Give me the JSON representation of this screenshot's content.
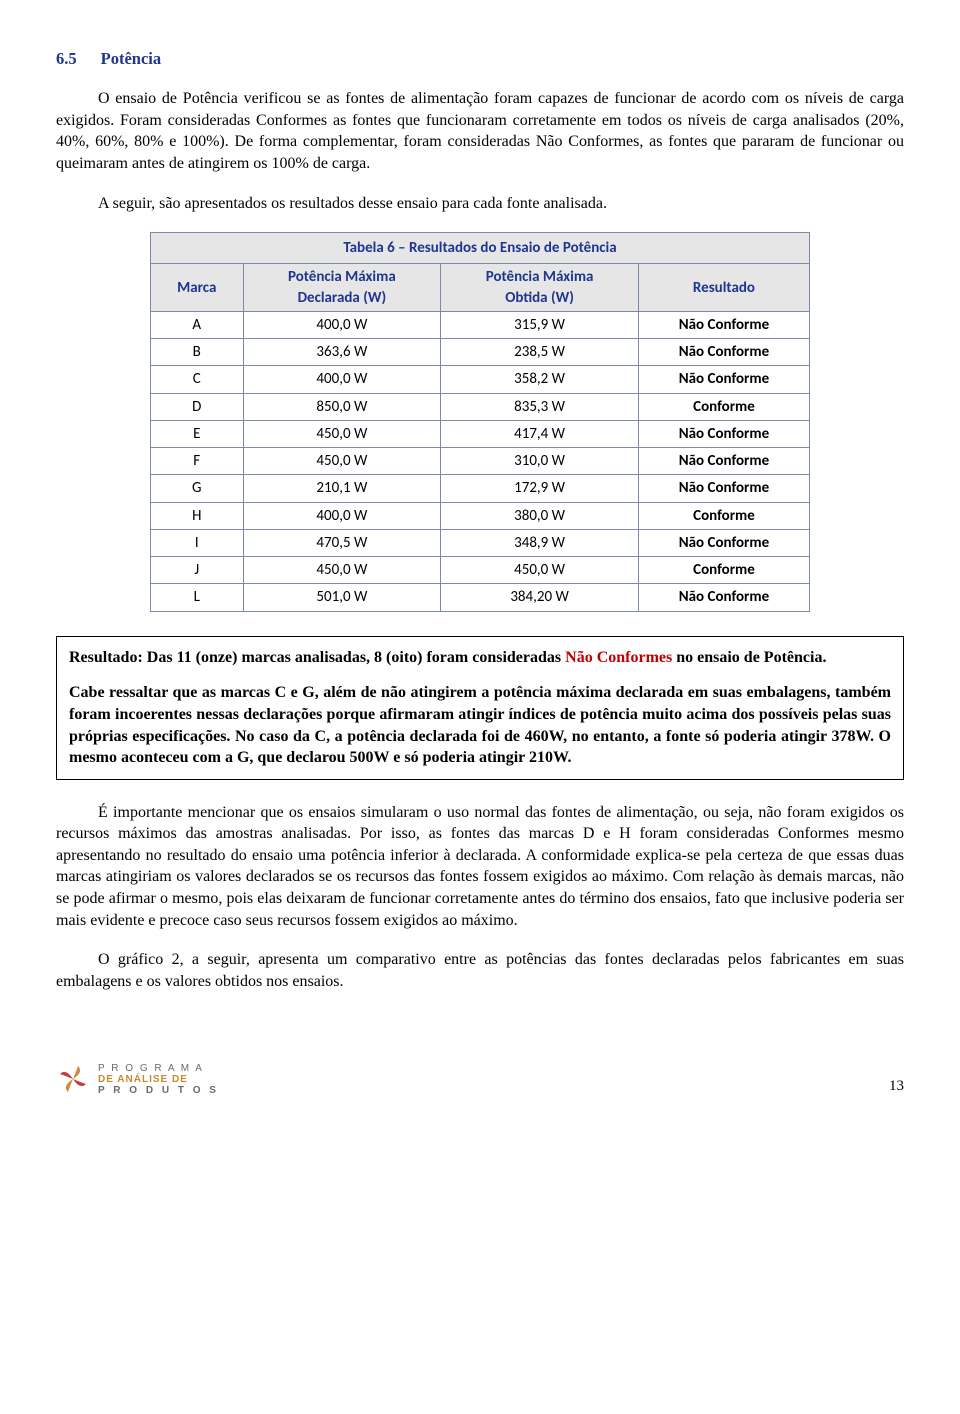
{
  "section": {
    "number": "6.5",
    "title": "Potência"
  },
  "para1": "O ensaio de Potência verificou se as fontes de alimentação foram capazes de funcionar de acordo com os níveis de carga exigidos. Foram consideradas Conformes as fontes que funcionaram corretamente em todos os níveis de carga analisados (20%, 40%, 60%, 80% e 100%). De forma complementar, foram consideradas Não Conformes, as fontes que pararam de funcionar ou queimaram antes de atingirem os 100% de carga.",
  "para2": "A seguir, são apresentados os resultados desse ensaio para cada fonte analisada.",
  "table": {
    "title": "Tabela 6 – Resultados do Ensaio de Potência",
    "headers": {
      "marca": "Marca",
      "declarada": "Potência Máxima Declarada (W)",
      "obtida": "Potência Máxima Obtida (W)",
      "resultado": "Resultado"
    },
    "colors": {
      "header_text": "#1f3590",
      "header_bg": "#e6e6e6",
      "border": "#7b8aa6",
      "nao_conforme": "#c00000",
      "conforme": "#1f3590"
    },
    "rows": [
      {
        "marca": "A",
        "decl": "400,0 W",
        "obt": "315,9 W",
        "res": "Não Conforme",
        "conf": false
      },
      {
        "marca": "B",
        "decl": "363,6 W",
        "obt": "238,5 W",
        "res": "Não Conforme",
        "conf": false
      },
      {
        "marca": "C",
        "decl": "400,0 W",
        "obt": "358,2 W",
        "res": "Não Conforme",
        "conf": false
      },
      {
        "marca": "D",
        "decl": "850,0 W",
        "obt": "835,3 W",
        "res": "Conforme",
        "conf": true
      },
      {
        "marca": "E",
        "decl": "450,0 W",
        "obt": "417,4 W",
        "res": "Não Conforme",
        "conf": false
      },
      {
        "marca": "F",
        "decl": "450,0 W",
        "obt": "310,0 W",
        "res": "Não Conforme",
        "conf": false
      },
      {
        "marca": "G",
        "decl": "210,1 W",
        "obt": "172,9 W",
        "res": "Não Conforme",
        "conf": false
      },
      {
        "marca": "H",
        "decl": "400,0 W",
        "obt": "380,0 W",
        "res": "Conforme",
        "conf": true
      },
      {
        "marca": "I",
        "decl": "470,5 W",
        "obt": "348,9 W",
        "res": "Não Conforme",
        "conf": false
      },
      {
        "marca": "J",
        "decl": "450,0 W",
        "obt": "450,0 W",
        "res": "Conforme",
        "conf": true
      },
      {
        "marca": "L",
        "decl": "501,0 W",
        "obt": "384,20 W",
        "res": "Não Conforme",
        "conf": false
      }
    ]
  },
  "resultbox": {
    "p1_pre": "Resultado: Das 11 (onze) marcas analisadas, 8 (oito) foram consideradas ",
    "p1_nc": "Não Conformes",
    "p1_post": " no ensaio de Potência.",
    "p2": "Cabe ressaltar que as marcas C e G, além de não atingirem a potência máxima declarada em suas embalagens, também foram incoerentes nessas declarações porque afirmaram atingir índices de potência muito acima dos possíveis pelas suas próprias especificações. No caso da C, a potência declarada foi de 460W, no entanto, a fonte só poderia atingir 378W. O mesmo aconteceu com a G, que declarou 500W e só poderia atingir 210W."
  },
  "para3": "É importante mencionar que os ensaios simularam o uso normal das fontes de alimentação, ou seja, não foram exigidos os recursos máximos das amostras analisadas. Por isso, as fontes das marcas D e H foram consideradas Conformes mesmo apresentando no resultado do ensaio uma potência inferior à declarada. A conformidade explica-se pela certeza de que essas duas marcas atingiriam os valores declarados se os recursos das fontes fossem exigidos ao máximo. Com relação às demais marcas, não se pode afirmar o mesmo, pois elas deixaram de funcionar corretamente antes do término dos ensaios, fato que inclusive poderia ser mais evidente e precoce caso seus recursos fossem exigidos ao máximo.",
  "para4": "O gráfico 2, a seguir, apresenta um comparativo entre as potências das fontes declaradas pelos fabricantes em suas embalagens e os valores obtidos nos ensaios.",
  "footer": {
    "logo_line1": "P R O G R A M A",
    "logo_line2": "DE ANÁLISE DE",
    "logo_line3": "P R O D U T O S",
    "page": "13"
  }
}
